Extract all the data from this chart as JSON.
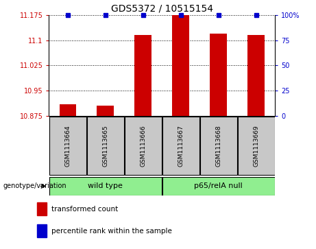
{
  "title": "GDS5372 / 10515154",
  "samples": [
    "GSM1113664",
    "GSM1113665",
    "GSM1113666",
    "GSM1113667",
    "GSM1113668",
    "GSM1113669"
  ],
  "transformed_counts": [
    10.91,
    10.905,
    11.115,
    11.175,
    11.12,
    11.115
  ],
  "percentile_ranks": [
    100,
    100,
    100,
    100,
    100,
    100
  ],
  "ylim_left": [
    10.875,
    11.175
  ],
  "ylim_right": [
    0,
    100
  ],
  "yticks_left": [
    10.875,
    10.95,
    11.025,
    11.1,
    11.175
  ],
  "yticks_right": [
    0,
    25,
    50,
    75,
    100
  ],
  "ytick_labels_left": [
    "10.875",
    "10.95",
    "11.025",
    "11.1",
    "11.175"
  ],
  "ytick_labels_right": [
    "0",
    "25",
    "50",
    "75",
    "100%"
  ],
  "groups": [
    {
      "label": "wild type",
      "samples": [
        0,
        1,
        2
      ],
      "color": "#90EE90"
    },
    {
      "label": "p65/relA null",
      "samples": [
        3,
        4,
        5
      ],
      "color": "#90EE90"
    }
  ],
  "group_label_prefix": "genotype/variation",
  "bar_color": "#CC0000",
  "percentile_color": "#0000CC",
  "bar_width": 0.45,
  "sample_box_color": "#C8C8C8",
  "legend_red_label": "transformed count",
  "legend_blue_label": "percentile rank within the sample"
}
